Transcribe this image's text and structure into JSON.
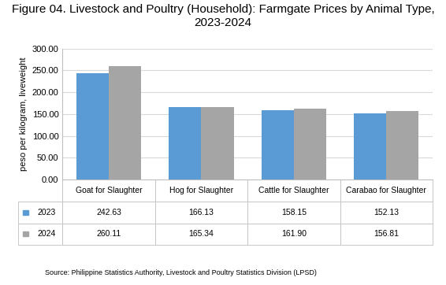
{
  "chart_data": {
    "type": "bar",
    "title": "Figure 04. Livestock and Poultry (Household): Farmgate Prices by Animal Type, 2023-2024",
    "y_label": "peso per kilogram, liveweight",
    "source": "Source: Philippine Statistics Authority, Livestock and Poultry Statistics Division (LPSD)",
    "categories": [
      "Goat for Slaughter",
      "Hog for Slaughter",
      "Cattle for Slaughter",
      "Carabao for Slaughter"
    ],
    "series": [
      {
        "name": "2023",
        "color": "#5b9bd5",
        "values": [
          242.63,
          166.13,
          158.15,
          152.13
        ],
        "value_labels": [
          "242.63",
          "166.13",
          "158.15",
          "152.13"
        ]
      },
      {
        "name": "2024",
        "color": "#a5a5a5",
        "values": [
          260.11,
          165.34,
          161.9,
          156.81
        ],
        "value_labels": [
          "260.11",
          "165.34",
          "161.90",
          "156.81"
        ]
      }
    ],
    "ylim": [
      0,
      300
    ],
    "yticks": [
      {
        "value": 0,
        "label": "0.00"
      },
      {
        "value": 50,
        "label": "50.00"
      },
      {
        "value": 100,
        "label": "100.00"
      },
      {
        "value": 150,
        "label": "150.00"
      },
      {
        "value": 200,
        "label": "200.00"
      },
      {
        "value": 250,
        "label": "250.00"
      },
      {
        "value": 300,
        "label": "300.00"
      }
    ],
    "grid": true,
    "tick_labels": "y"
  }
}
